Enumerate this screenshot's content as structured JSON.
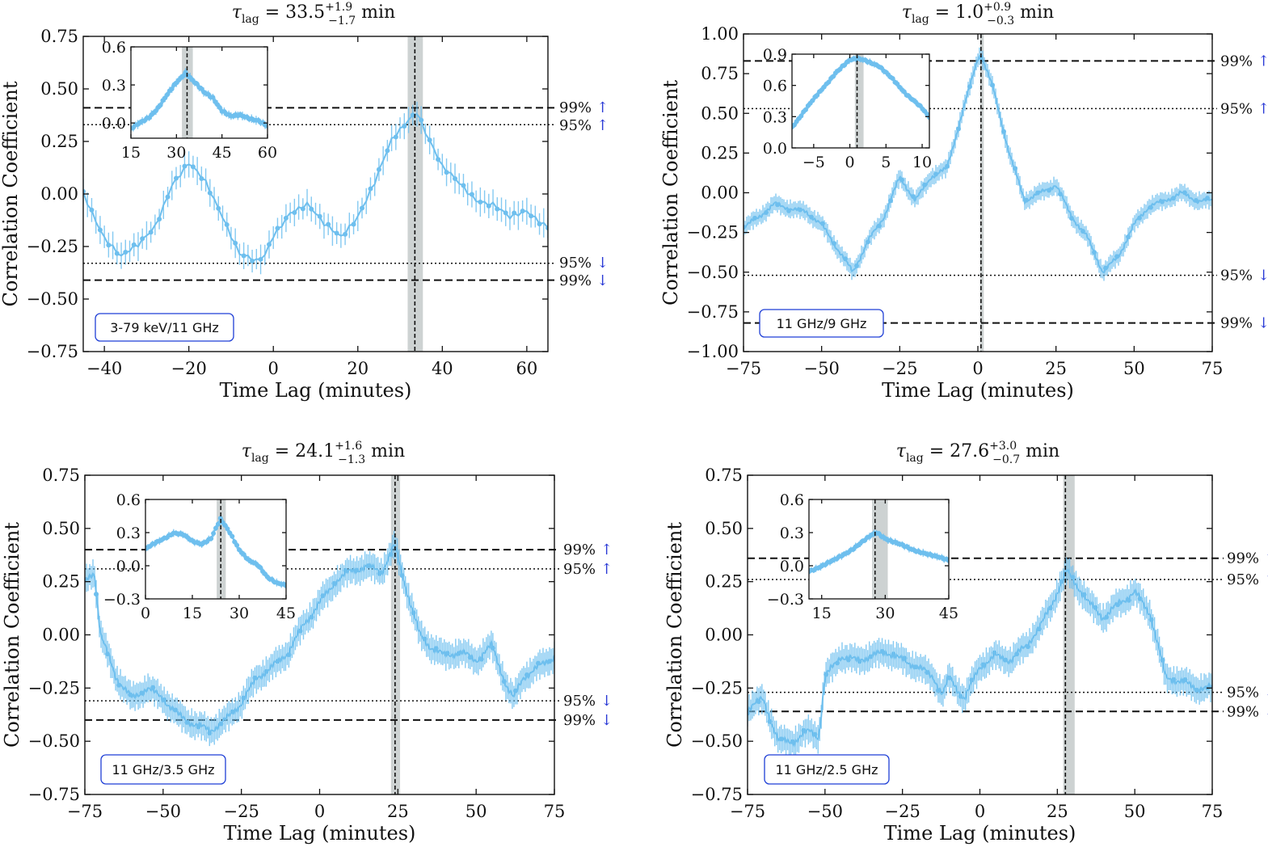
{
  "colors": {
    "series": "#6ebfee",
    "shade": "#cdd2d2",
    "box_border": "#1f3fd6",
    "arrow": "#2b3bd6",
    "axis": "#111111"
  },
  "chart_data": [
    {
      "type": "line",
      "title_prefix": "τ",
      "title_sub": "lag",
      "title_value": " = 33.5",
      "title_sup": "+1.9",
      "title_low": "−1.7",
      "title_unit": " min",
      "xlabel": "Time Lag (minutes)",
      "ylabel": "Correlation Coefficient",
      "xlim": [
        -45,
        65
      ],
      "ylim": [
        -0.75,
        0.75
      ],
      "xticks": [
        -40,
        -20,
        0,
        20,
        40,
        60
      ],
      "yticks": [
        -0.75,
        -0.5,
        -0.25,
        0.0,
        0.25,
        0.5,
        0.75
      ],
      "ytick_labels": [
        "−0.75",
        "−0.50",
        "−0.25",
        "0.00",
        "0.25",
        "0.50",
        "0.75"
      ],
      "xtick_labels": [
        "−40",
        "−20",
        "0",
        "20",
        "40",
        "60"
      ],
      "lag": 33.5,
      "lag_band": [
        31.8,
        35.4
      ],
      "dashed_levels": [
        0.41,
        -0.41
      ],
      "dotted_levels": [
        0.33,
        -0.33
      ],
      "sig_labels": [
        "99%",
        "95%",
        "95%",
        "99%"
      ],
      "label_box": "3-79 keV/11 GHz",
      "err": 0.06,
      "series_x": [
        -45,
        -40,
        -36,
        -32,
        -28,
        -24,
        -20,
        -16,
        -12,
        -8,
        -4,
        -2,
        0,
        4,
        8,
        12,
        16,
        20,
        24,
        28,
        32,
        34,
        36,
        40,
        44,
        48,
        52,
        56,
        60,
        65
      ],
      "series_y": [
        0.0,
        -0.2,
        -0.3,
        -0.25,
        -0.15,
        0.05,
        0.14,
        0.05,
        -0.1,
        -0.28,
        -0.33,
        -0.3,
        -0.2,
        -0.08,
        -0.05,
        -0.15,
        -0.2,
        -0.1,
        0.05,
        0.25,
        0.36,
        0.4,
        0.3,
        0.12,
        0.05,
        -0.02,
        -0.05,
        -0.12,
        -0.08,
        -0.15
      ],
      "inset": {
        "xlim": [
          15,
          60
        ],
        "ylim": [
          -0.12,
          0.6
        ],
        "xticks": [
          15,
          30,
          45,
          60
        ],
        "yticks": [
          0.0,
          0.3,
          0.6
        ],
        "xtick_labels": [
          "15",
          "30",
          "45",
          "60"
        ],
        "ytick_labels": [
          "0.0",
          "0.3",
          "0.6"
        ],
        "lag": 33.5,
        "lag_band": [
          31.8,
          35.4
        ],
        "series_x": [
          15,
          18,
          21,
          24,
          27,
          30,
          33,
          36,
          39,
          42,
          45,
          48,
          51,
          54,
          57,
          60
        ],
        "series_y": [
          -0.05,
          0.0,
          0.05,
          0.12,
          0.22,
          0.32,
          0.4,
          0.32,
          0.24,
          0.2,
          0.1,
          0.05,
          0.06,
          0.04,
          0.02,
          -0.03
        ]
      }
    },
    {
      "type": "line",
      "title_prefix": "τ",
      "title_sub": "lag",
      "title_value": " = 1.0",
      "title_sup": "+0.9",
      "title_low": "−0.3",
      "title_unit": " min",
      "xlabel": "Time Lag (minutes)",
      "ylabel": "Correlation Coefficient",
      "xlim": [
        -75,
        75
      ],
      "ylim": [
        -1.0,
        1.0
      ],
      "xticks": [
        -75,
        -50,
        -25,
        0,
        25,
        50,
        75
      ],
      "yticks": [
        -1.0,
        -0.75,
        -0.5,
        -0.25,
        0.0,
        0.25,
        0.5,
        0.75,
        1.0
      ],
      "ytick_labels": [
        "−1.00",
        "−0.75",
        "−0.50",
        "−0.25",
        "0.00",
        "0.25",
        "0.50",
        "0.75",
        "1.00"
      ],
      "xtick_labels": [
        "−75",
        "−50",
        "−25",
        "0",
        "25",
        "50",
        "75"
      ],
      "lag": 1.0,
      "lag_band": [
        0.7,
        1.9
      ],
      "dashed_levels": [
        0.83,
        -0.82
      ],
      "dotted_levels": [
        0.53,
        -0.52
      ],
      "sig_labels": [
        "99%",
        "95%",
        "95%",
        "99%"
      ],
      "label_box": "11 GHz/9 GHz",
      "err": 0.05,
      "series_x": [
        -75,
        -70,
        -65,
        -60,
        -55,
        -50,
        -45,
        -40,
        -35,
        -30,
        -25,
        -20,
        -15,
        -10,
        -5,
        0,
        1,
        5,
        10,
        15,
        20,
        25,
        30,
        35,
        40,
        45,
        50,
        55,
        60,
        65,
        70,
        75
      ],
      "series_y": [
        -0.22,
        -0.15,
        -0.07,
        -0.1,
        -0.12,
        -0.2,
        -0.35,
        -0.5,
        -0.3,
        -0.15,
        0.1,
        -0.05,
        0.1,
        0.15,
        0.5,
        0.85,
        0.87,
        0.65,
        0.25,
        -0.05,
        0.0,
        0.05,
        -0.15,
        -0.28,
        -0.5,
        -0.4,
        -0.2,
        -0.08,
        -0.05,
        0.0,
        -0.05,
        -0.05
      ],
      "inset": {
        "xlim": [
          -8,
          11
        ],
        "ylim": [
          0.0,
          0.9
        ],
        "xticks": [
          -5,
          0,
          5,
          10
        ],
        "yticks": [
          0.0,
          0.3,
          0.6,
          0.9
        ],
        "xtick_labels": [
          "−5",
          "0",
          "5",
          "10"
        ],
        "ytick_labels": [
          "0.0",
          "0.3",
          "0.6",
          "0.9"
        ],
        "lag": 1.0,
        "lag_band": [
          0.7,
          1.9
        ],
        "series_x": [
          -8,
          -6,
          -4,
          -2,
          0,
          1,
          2,
          4,
          6,
          8,
          10,
          11
        ],
        "series_y": [
          0.2,
          0.38,
          0.55,
          0.72,
          0.84,
          0.86,
          0.85,
          0.78,
          0.66,
          0.5,
          0.38,
          0.3
        ]
      }
    },
    {
      "type": "line",
      "title_prefix": "τ",
      "title_sub": "lag",
      "title_value": " = 24.1",
      "title_sup": "+1.6",
      "title_low": "−1.3",
      "title_unit": " min",
      "xlabel": "Time Lag (minutes)",
      "ylabel": "Correlation Coefficient",
      "xlim": [
        -75,
        75
      ],
      "ylim": [
        -0.75,
        0.75
      ],
      "xticks": [
        -75,
        -50,
        -25,
        0,
        25,
        50,
        75
      ],
      "yticks": [
        -0.75,
        -0.5,
        -0.25,
        0.0,
        0.25,
        0.5,
        0.75
      ],
      "ytick_labels": [
        "−0.75",
        "−0.50",
        "−0.25",
        "0.00",
        "0.25",
        "0.50",
        "0.75"
      ],
      "xtick_labels": [
        "−75",
        "−50",
        "−25",
        "0",
        "25",
        "50",
        "75"
      ],
      "lag": 24.1,
      "lag_band": [
        22.8,
        25.7
      ],
      "dashed_levels": [
        0.4,
        -0.4
      ],
      "dotted_levels": [
        0.31,
        -0.31
      ],
      "sig_labels": [
        "99%",
        "95%",
        "95%",
        "99%"
      ],
      "label_box": "11 GHz/3.5 GHz",
      "err": 0.06,
      "series_x": [
        -75,
        -72,
        -70,
        -65,
        -60,
        -55,
        -50,
        -45,
        -40,
        -35,
        -30,
        -25,
        -20,
        -15,
        -10,
        -5,
        0,
        5,
        10,
        15,
        20,
        24,
        28,
        32,
        35,
        40,
        45,
        50,
        55,
        60,
        62,
        65,
        70,
        75
      ],
      "series_y": [
        0.25,
        0.3,
        0.0,
        -0.2,
        -0.3,
        -0.25,
        -0.3,
        -0.38,
        -0.42,
        -0.45,
        -0.4,
        -0.32,
        -0.2,
        -0.15,
        -0.08,
        0.05,
        0.15,
        0.25,
        0.3,
        0.32,
        0.3,
        0.42,
        0.2,
        0.0,
        -0.05,
        -0.1,
        -0.08,
        -0.12,
        -0.05,
        -0.25,
        -0.3,
        -0.2,
        -0.15,
        -0.1
      ],
      "inset": {
        "xlim": [
          0,
          45
        ],
        "ylim": [
          -0.3,
          0.6
        ],
        "xticks": [
          0,
          15,
          30,
          45
        ],
        "yticks": [
          -0.3,
          0.0,
          0.3,
          0.6
        ],
        "xtick_labels": [
          "0",
          "15",
          "30",
          "45"
        ],
        "ytick_labels": [
          "−0.3",
          "0.0",
          "0.3",
          "0.6"
        ],
        "lag": 24.1,
        "lag_band": [
          22.8,
          25.7
        ],
        "series_x": [
          0,
          3,
          6,
          9,
          12,
          15,
          18,
          21,
          24,
          27,
          30,
          33,
          36,
          39,
          42,
          45
        ],
        "series_y": [
          0.15,
          0.2,
          0.25,
          0.3,
          0.28,
          0.22,
          0.2,
          0.25,
          0.42,
          0.3,
          0.15,
          0.05,
          0.0,
          -0.1,
          -0.15,
          -0.18
        ]
      }
    },
    {
      "type": "line",
      "title_prefix": "τ",
      "title_sub": "lag",
      "title_value": " = 27.6",
      "title_sup": "+3.0",
      "title_low": "−0.7",
      "title_unit": " min",
      "xlabel": "Time Lag (minutes)",
      "ylabel": "Correlation Coefficient",
      "xlim": [
        -75,
        75
      ],
      "ylim": [
        -0.75,
        0.75
      ],
      "xticks": [
        -75,
        -50,
        -25,
        0,
        25,
        50,
        75
      ],
      "yticks": [
        -0.75,
        -0.5,
        -0.25,
        0.0,
        0.25,
        0.5,
        0.75
      ],
      "ytick_labels": [
        "−0.75",
        "−0.50",
        "−0.25",
        "0.00",
        "0.25",
        "0.50",
        "0.75"
      ],
      "xtick_labels": [
        "−75",
        "−50",
        "−25",
        "0",
        "25",
        "50",
        "75"
      ],
      "lag": 27.6,
      "lag_band": [
        26.9,
        30.6
      ],
      "dashed_levels": [
        0.36,
        -0.36
      ],
      "dotted_levels": [
        0.26,
        -0.27
      ],
      "sig_labels": [
        "99%",
        "95%",
        "95%",
        "99%"
      ],
      "label_box": "11 GHz/2.5 GHz",
      "err": 0.06,
      "series_x": [
        -75,
        -70,
        -65,
        -60,
        -55,
        -52,
        -50,
        -45,
        -40,
        -35,
        -30,
        -25,
        -20,
        -15,
        -12,
        -10,
        -5,
        0,
        5,
        10,
        15,
        20,
        25,
        28,
        32,
        35,
        40,
        45,
        50,
        55,
        60,
        65,
        70,
        75
      ],
      "series_y": [
        -0.35,
        -0.3,
        -0.5,
        -0.5,
        -0.45,
        -0.48,
        -0.2,
        -0.1,
        -0.12,
        -0.1,
        -0.08,
        -0.12,
        -0.15,
        -0.2,
        -0.28,
        -0.2,
        -0.3,
        -0.15,
        -0.1,
        -0.12,
        -0.05,
        0.05,
        0.2,
        0.3,
        0.22,
        0.15,
        0.08,
        0.15,
        0.2,
        0.1,
        -0.2,
        -0.22,
        -0.25,
        -0.25
      ],
      "inset": {
        "xlim": [
          12,
          45
        ],
        "ylim": [
          -0.3,
          0.6
        ],
        "xticks": [
          15,
          30,
          45
        ],
        "yticks": [
          -0.3,
          0.0,
          0.3,
          0.6
        ],
        "xtick_labels": [
          "15",
          "30",
          "45"
        ],
        "ytick_labels": [
          "−0.3",
          "0.0",
          "0.3",
          "0.6"
        ],
        "lag": 27.6,
        "lag_band": [
          26.9,
          30.6
        ],
        "series_x": [
          12,
          15,
          18,
          21,
          24,
          27,
          28,
          30,
          33,
          36,
          39,
          42,
          45
        ],
        "series_y": [
          -0.05,
          0.0,
          0.05,
          0.12,
          0.2,
          0.28,
          0.3,
          0.25,
          0.2,
          0.15,
          0.12,
          0.08,
          0.05
        ]
      }
    }
  ]
}
